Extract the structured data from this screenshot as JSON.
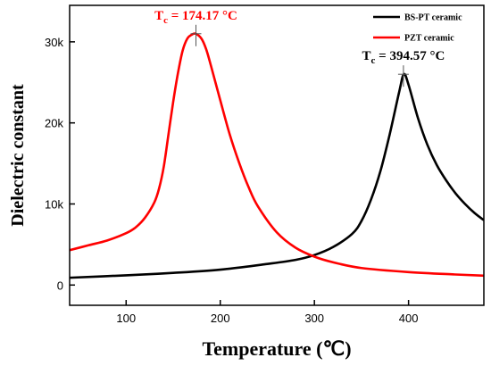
{
  "chart_data": {
    "type": "line",
    "xlabel": "Temperature (℃)",
    "ylabel": "Dielectric constant",
    "xlim": [
      40,
      480
    ],
    "ylim": [
      -2500,
      34500
    ],
    "xticks": [
      100,
      200,
      300,
      400
    ],
    "xtick_labels": [
      "100",
      "200",
      "300",
      "400"
    ],
    "yticks": [
      0,
      10000,
      20000,
      30000
    ],
    "ytick_labels": [
      "0",
      "10k",
      "20k",
      "30k"
    ],
    "legend_placement": "top-right",
    "series": [
      {
        "name": "BS-PT ceramic",
        "color": "#000000",
        "x": [
          40,
          100,
          150,
          200,
          250,
          280,
          300,
          320,
          340,
          350,
          360,
          370,
          380,
          390,
          395,
          400,
          410,
          420,
          430,
          440,
          450,
          460,
          470,
          480
        ],
        "y": [
          900,
          1200,
          1500,
          1900,
          2600,
          3100,
          3700,
          4700,
          6300,
          7900,
          10500,
          14000,
          18600,
          23800,
          26000,
          24700,
          20600,
          17300,
          14800,
          12900,
          11300,
          10000,
          8900,
          8000
        ]
      },
      {
        "name": "PZT ceramic",
        "color": "#ff0000",
        "x": [
          40,
          60,
          80,
          100,
          110,
          120,
          130,
          135,
          140,
          145,
          150,
          155,
          160,
          165,
          170,
          174,
          180,
          185,
          190,
          200,
          210,
          220,
          230,
          240,
          260,
          280,
          300,
          320,
          350,
          400,
          450,
          480
        ],
        "y": [
          4300,
          4900,
          5500,
          6400,
          7100,
          8300,
          10200,
          11900,
          14600,
          18600,
          22600,
          26100,
          28900,
          30400,
          30900,
          31000,
          30400,
          29100,
          27100,
          22800,
          18600,
          15100,
          12100,
          9700,
          6500,
          4600,
          3500,
          2800,
          2100,
          1600,
          1300,
          1150
        ]
      }
    ],
    "annotations": [
      {
        "series": 1,
        "x": 174.17,
        "y": 31000,
        "text": "T",
        "sub": "c",
        "rest": " = 174.17 °C",
        "color": "#ff0000"
      },
      {
        "series": 0,
        "x": 394.57,
        "y": 26000,
        "text": "T",
        "sub": "c",
        "rest": " = 394.57 °C",
        "color": "#000000"
      }
    ]
  }
}
